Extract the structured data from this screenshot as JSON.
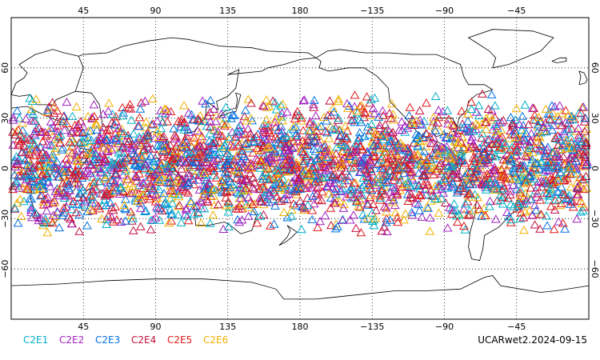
{
  "colors": {
    "C2E1": "#00b0c8",
    "C2E2": "#a020c0",
    "C2E3": "#0070e0",
    "C2E4": "#c01040",
    "C2E5": "#e01818",
    "C2E6": "#f0b000",
    "grid": "#000000"
  },
  "map": {
    "projection": "equirectangular",
    "lon_range": [
      0,
      360
    ],
    "lat_range": [
      -90,
      90
    ],
    "top_lon_labels": [
      "45",
      "90",
      "135",
      "180",
      "−135",
      "−90",
      "−45"
    ],
    "bottom_lon_labels": [
      "45",
      "90",
      "135",
      "180",
      "−135",
      "−90",
      "−45"
    ],
    "lat_labels": [
      "60",
      "30",
      "0",
      "−30",
      "−60"
    ],
    "grid": true,
    "marker": "open-triangle"
  },
  "chart_data": {
    "type": "scatter",
    "series": [
      {
        "name": "C2E1",
        "color": "#00b0c8",
        "lat_range": [
          -40,
          45
        ],
        "count": 500
      },
      {
        "name": "C2E2",
        "color": "#a020c0",
        "lat_range": [
          -40,
          45
        ],
        "count": 500
      },
      {
        "name": "C2E3",
        "color": "#0070e0",
        "lat_range": [
          -40,
          45
        ],
        "count": 500
      },
      {
        "name": "C2E4",
        "color": "#c01040",
        "lat_range": [
          -40,
          45
        ],
        "count": 500
      },
      {
        "name": "C2E5",
        "color": "#e01818",
        "lat_range": [
          -40,
          45
        ],
        "count": 500
      },
      {
        "name": "C2E6",
        "color": "#f0b000",
        "lat_range": [
          -40,
          45
        ],
        "count": 500
      }
    ],
    "legend": [
      "C2E1",
      "C2E2",
      "C2E3",
      "C2E4",
      "C2E5",
      "C2E6"
    ],
    "legend_position": "bottom-left"
  },
  "caption": "UCARwet2.2024-09-15"
}
